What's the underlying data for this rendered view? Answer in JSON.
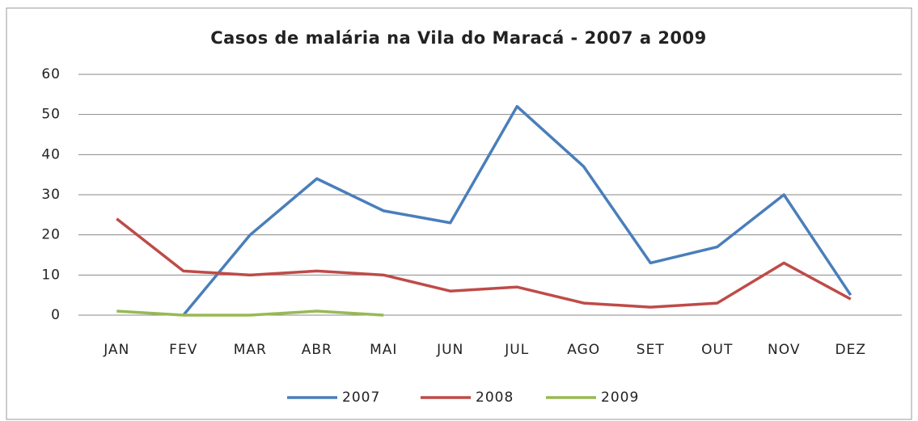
{
  "chart_data": {
    "type": "line",
    "title": "Casos de malária na Vila do Maracá - 2007 a 2009",
    "categories": [
      "JAN",
      "FEV",
      "MAR",
      "ABR",
      "MAI",
      "JUN",
      "JUL",
      "AGO",
      "SET",
      "OUT",
      "NOV",
      "DEZ"
    ],
    "series": [
      {
        "name": "2007",
        "color": "#4a7ebb",
        "values": [
          null,
          0,
          20,
          34,
          26,
          23,
          52,
          37,
          13,
          17,
          30,
          5
        ]
      },
      {
        "name": "2008",
        "color": "#be4b48",
        "values": [
          24,
          11,
          10,
          11,
          10,
          6,
          7,
          3,
          2,
          3,
          13,
          4
        ]
      },
      {
        "name": "2009",
        "color": "#98b954",
        "values": [
          1,
          0,
          0,
          1,
          0,
          null,
          null,
          null,
          null,
          null,
          null,
          null
        ]
      }
    ],
    "ylim": [
      0,
      60
    ],
    "yticks": [
      0,
      10,
      20,
      30,
      40,
      50,
      60
    ],
    "grid": true,
    "legend": "bottom"
  }
}
